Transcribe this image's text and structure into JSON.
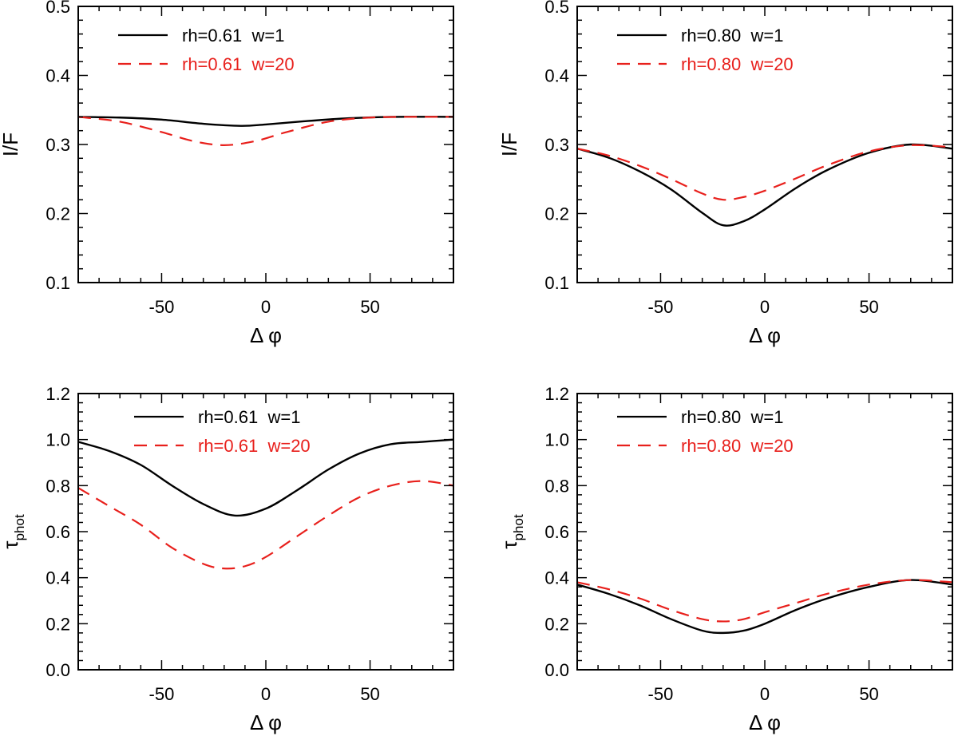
{
  "chart_data": [
    {
      "type": "line",
      "panel": "top-left",
      "xlabel": "Δ φ",
      "ylabel": "I/F",
      "ylabel_sub": "",
      "xlim": [
        -90,
        90
      ],
      "ylim": [
        0.1,
        0.5
      ],
      "xticks": [
        -50,
        0,
        50
      ],
      "yticks": [
        0.1,
        0.2,
        0.3,
        0.4,
        0.5
      ],
      "ytick_labels": [
        "0.1",
        "0.2",
        "0.3",
        "0.4",
        "0.5"
      ],
      "legend_position": "top-left",
      "series": [
        {
          "name": "rh=0.61  w=1",
          "color": "#000000",
          "style": "solid",
          "x": [
            -90,
            -70,
            -50,
            -30,
            -12,
            0,
            20,
            40,
            60,
            90
          ],
          "y": [
            0.34,
            0.339,
            0.336,
            0.33,
            0.327,
            0.329,
            0.334,
            0.338,
            0.34,
            0.34
          ]
        },
        {
          "name": "rh=0.61  w=20",
          "color": "#e8201c",
          "style": "dashed",
          "x": [
            -90,
            -70,
            -50,
            -35,
            -20,
            -5,
            10,
            30,
            50,
            70,
            90
          ],
          "y": [
            0.34,
            0.333,
            0.318,
            0.305,
            0.299,
            0.305,
            0.318,
            0.333,
            0.339,
            0.34,
            0.34
          ]
        }
      ]
    },
    {
      "type": "line",
      "panel": "top-right",
      "xlabel": "Δ φ",
      "ylabel": "I/F",
      "ylabel_sub": "",
      "xlim": [
        -90,
        90
      ],
      "ylim": [
        0.1,
        0.5
      ],
      "xticks": [
        -50,
        0,
        50
      ],
      "yticks": [
        0.1,
        0.2,
        0.3,
        0.4,
        0.5
      ],
      "ytick_labels": [
        "0.1",
        "0.2",
        "0.3",
        "0.4",
        "0.5"
      ],
      "legend_position": "top-left",
      "series": [
        {
          "name": "rh=0.80  w=1",
          "color": "#000000",
          "style": "solid",
          "x": [
            -90,
            -75,
            -60,
            -45,
            -30,
            -20,
            -10,
            0,
            15,
            30,
            50,
            70,
            90
          ],
          "y": [
            0.294,
            0.281,
            0.261,
            0.235,
            0.201,
            0.183,
            0.189,
            0.206,
            0.237,
            0.263,
            0.288,
            0.3,
            0.294
          ]
        },
        {
          "name": "rh=0.80  w=20",
          "color": "#e8201c",
          "style": "dashed",
          "x": [
            -90,
            -75,
            -60,
            -45,
            -30,
            -20,
            -10,
            0,
            15,
            30,
            50,
            70,
            90
          ],
          "y": [
            0.294,
            0.284,
            0.269,
            0.25,
            0.229,
            0.22,
            0.224,
            0.233,
            0.251,
            0.27,
            0.29,
            0.299,
            0.296
          ]
        }
      ]
    },
    {
      "type": "line",
      "panel": "bottom-left",
      "xlabel": "Δ φ",
      "ylabel": "τ",
      "ylabel_sub": "phot",
      "xlim": [
        -90,
        90
      ],
      "ylim": [
        0.0,
        1.2
      ],
      "xticks": [
        -50,
        0,
        50
      ],
      "yticks": [
        0.0,
        0.2,
        0.4,
        0.6,
        0.8,
        1.0,
        1.2
      ],
      "ytick_labels": [
        "0.0",
        "0.2",
        "0.4",
        "0.6",
        "0.8",
        "1.0",
        "1.2"
      ],
      "legend_position": "top-center",
      "series": [
        {
          "name": "rh=0.61  w=1",
          "color": "#000000",
          "style": "solid",
          "x": [
            -90,
            -75,
            -60,
            -45,
            -30,
            -15,
            0,
            15,
            30,
            45,
            60,
            75,
            90
          ],
          "y": [
            0.99,
            0.95,
            0.89,
            0.8,
            0.72,
            0.67,
            0.7,
            0.78,
            0.87,
            0.94,
            0.98,
            0.99,
            1.0
          ]
        },
        {
          "name": "rh=0.61  w=20",
          "color": "#e8201c",
          "style": "dashed",
          "x": [
            -90,
            -75,
            -60,
            -45,
            -30,
            -20,
            -10,
            0,
            15,
            30,
            45,
            60,
            75,
            90
          ],
          "y": [
            0.79,
            0.71,
            0.63,
            0.53,
            0.46,
            0.44,
            0.45,
            0.49,
            0.58,
            0.67,
            0.75,
            0.8,
            0.82,
            0.8
          ]
        }
      ]
    },
    {
      "type": "line",
      "panel": "bottom-right",
      "xlabel": "Δ φ",
      "ylabel": "τ",
      "ylabel_sub": "phot",
      "xlim": [
        -90,
        90
      ],
      "ylim": [
        0.0,
        1.2
      ],
      "xticks": [
        -50,
        0,
        50
      ],
      "yticks": [
        0.0,
        0.2,
        0.4,
        0.6,
        0.8,
        1.0,
        1.2
      ],
      "ytick_labels": [
        "0.0",
        "0.2",
        "0.4",
        "0.6",
        "0.8",
        "1.0",
        "1.2"
      ],
      "legend_position": "top-left",
      "series": [
        {
          "name": "rh=0.80  w=1",
          "color": "#000000",
          "style": "solid",
          "x": [
            -90,
            -75,
            -60,
            -45,
            -30,
            -20,
            -10,
            0,
            15,
            30,
            50,
            70,
            90
          ],
          "y": [
            0.37,
            0.33,
            0.28,
            0.22,
            0.17,
            0.16,
            0.17,
            0.2,
            0.26,
            0.31,
            0.36,
            0.39,
            0.37
          ]
        },
        {
          "name": "rh=0.80  w=20",
          "color": "#e8201c",
          "style": "dashed",
          "x": [
            -90,
            -75,
            -60,
            -45,
            -30,
            -20,
            -10,
            0,
            15,
            30,
            50,
            70,
            90
          ],
          "y": [
            0.38,
            0.35,
            0.31,
            0.26,
            0.22,
            0.21,
            0.22,
            0.25,
            0.29,
            0.33,
            0.37,
            0.39,
            0.38
          ]
        }
      ]
    }
  ]
}
